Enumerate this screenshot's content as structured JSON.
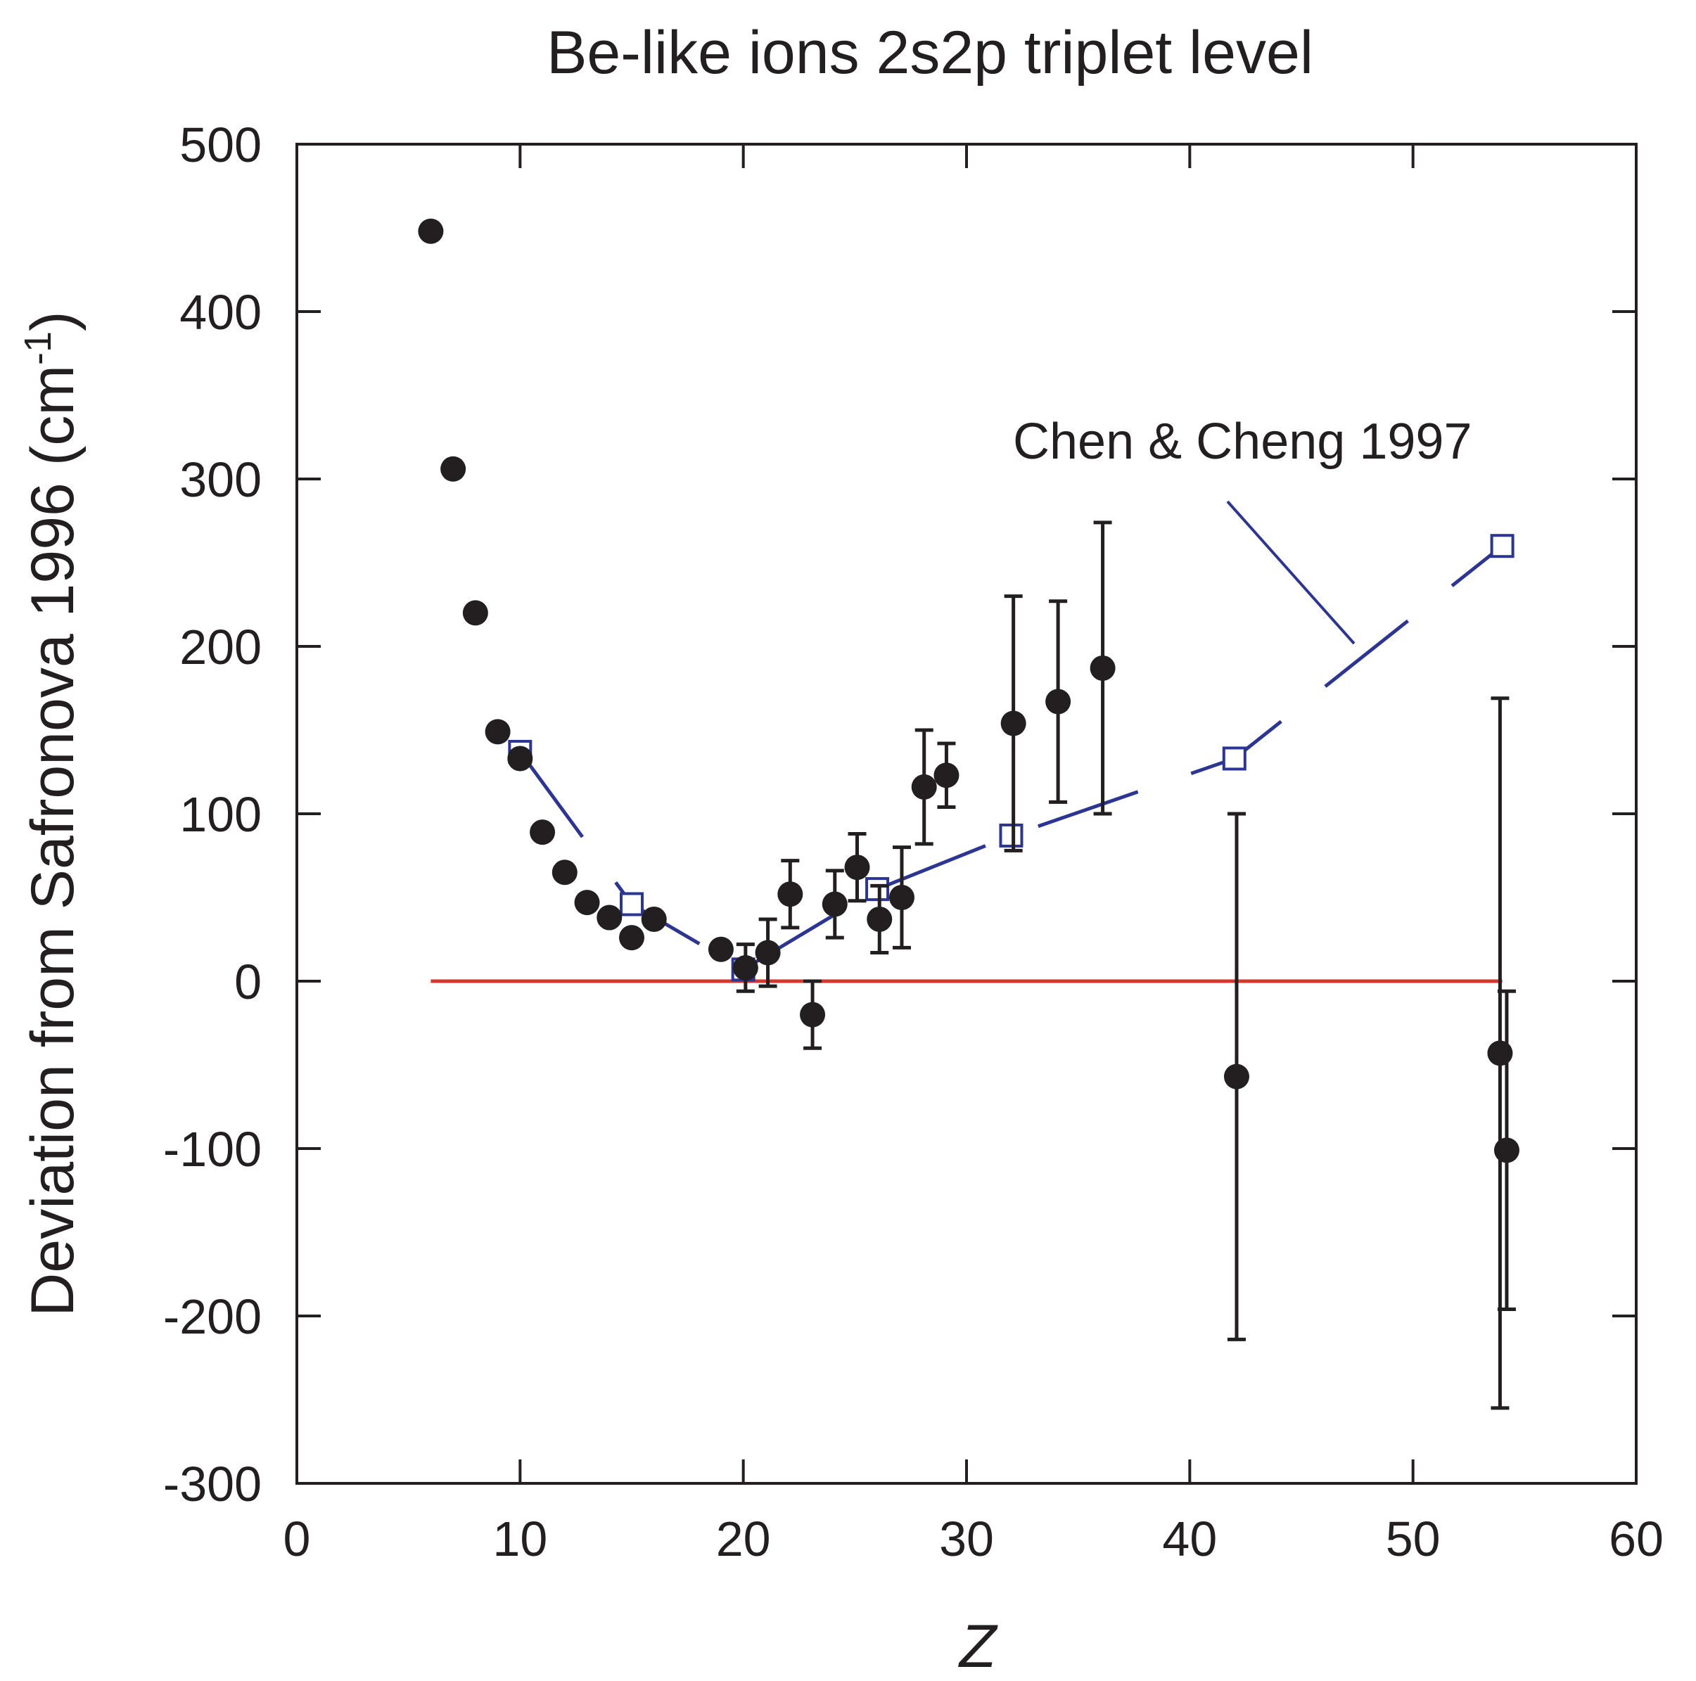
{
  "chart_data": {
    "type": "scatter",
    "title": "Be-like ions 2s2p triplet level",
    "xlabel": "Z",
    "ylabel_main": "Deviation from Safronova 1996 (cm",
    "ylabel_sup": "-1",
    "ylabel_close": ")",
    "xlim": [
      0,
      60
    ],
    "ylim": [
      -300,
      500
    ],
    "x_ticks": [
      0,
      10,
      20,
      30,
      40,
      50,
      60
    ],
    "y_ticks": [
      500,
      400,
      300,
      200,
      100,
      0,
      -100,
      -200,
      -300
    ],
    "annotation": "Chen & Cheng 1997",
    "reference_line": {
      "y": 0,
      "x_start": 6,
      "x_end": 54,
      "color": "#d7362a"
    },
    "colors": {
      "points": "#231f20",
      "theory": "#2b3594",
      "axes": "#231f20"
    },
    "series": [
      {
        "name": "measurements",
        "points": [
          {
            "x": 6,
            "y": 448
          },
          {
            "x": 7,
            "y": 306
          },
          {
            "x": 8,
            "y": 220
          },
          {
            "x": 9,
            "y": 149
          },
          {
            "x": 10,
            "y": 133
          },
          {
            "x": 11,
            "y": 89
          },
          {
            "x": 12,
            "y": 65
          },
          {
            "x": 13,
            "y": 47
          },
          {
            "x": 14,
            "y": 38
          },
          {
            "x": 15,
            "y": 26
          },
          {
            "x": 16,
            "y": 37
          },
          {
            "x": 19,
            "y": 19
          },
          {
            "x": 20.1,
            "y": 8,
            "err": 14
          },
          {
            "x": 21.1,
            "y": 17,
            "err": 20
          },
          {
            "x": 22.1,
            "y": 52,
            "err": 20
          },
          {
            "x": 23.1,
            "y": -20,
            "err": 20
          },
          {
            "x": 24.1,
            "y": 46,
            "err": 20
          },
          {
            "x": 25.1,
            "y": 68,
            "err": 20
          },
          {
            "x": 26.1,
            "y": 37,
            "err": 20
          },
          {
            "x": 27.1,
            "y": 50,
            "err": 30
          },
          {
            "x": 28.1,
            "y": 116,
            "err": 34
          },
          {
            "x": 29.1,
            "y": 123,
            "err": 19
          },
          {
            "x": 32.1,
            "y": 154,
            "err": 76
          },
          {
            "x": 34.1,
            "y": 167,
            "err": 60
          },
          {
            "x": 36.1,
            "y": 187,
            "err": 87
          },
          {
            "x": 42.1,
            "y": -57,
            "err": 157
          },
          {
            "x": 53.9,
            "y": -43,
            "err": 212
          },
          {
            "x": 54.2,
            "y": -101,
            "err": 95
          }
        ]
      },
      {
        "name": "Chen & Cheng 1997",
        "line_style": "dashed",
        "points": [
          {
            "x": 10,
            "y": 137
          },
          {
            "x": 15,
            "y": 46
          },
          {
            "x": 20,
            "y": 7
          },
          {
            "x": 26,
            "y": 55
          },
          {
            "x": 32,
            "y": 87
          },
          {
            "x": 42,
            "y": 133
          },
          {
            "x": 54,
            "y": 260
          }
        ]
      }
    ]
  }
}
